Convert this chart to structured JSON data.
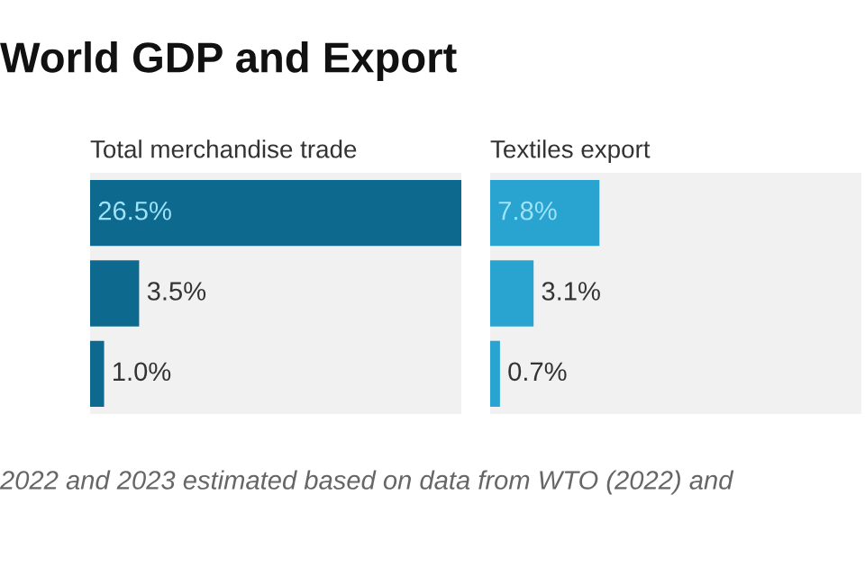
{
  "chart_data": [
    {
      "type": "other",
      "title": "World GDP and Export",
      "annotations": [
        "2022 and 2023 estimated based on data from WTO (2022) and"
      ]
    },
    {
      "type": "bar",
      "orientation": "horizontal",
      "title": "Total merchandise trade",
      "categories": [
        null,
        null,
        null
      ],
      "values": [
        26.5,
        3.5,
        1.0
      ],
      "value_labels": [
        "26.5%",
        "3.5%",
        "1.0%"
      ],
      "color": "#0d6a8e",
      "xlim": [
        0,
        26.5
      ],
      "tick_labels": false
    },
    {
      "type": "bar",
      "orientation": "horizontal",
      "title": "Textiles export",
      "categories": [
        null,
        null,
        null
      ],
      "values": [
        7.8,
        3.1,
        0.7
      ],
      "value_labels": [
        "7.8%",
        "3.1%",
        "0.7%"
      ],
      "color": "#29a3cf",
      "xlim": [
        0,
        26.5
      ],
      "tick_labels": false
    }
  ]
}
